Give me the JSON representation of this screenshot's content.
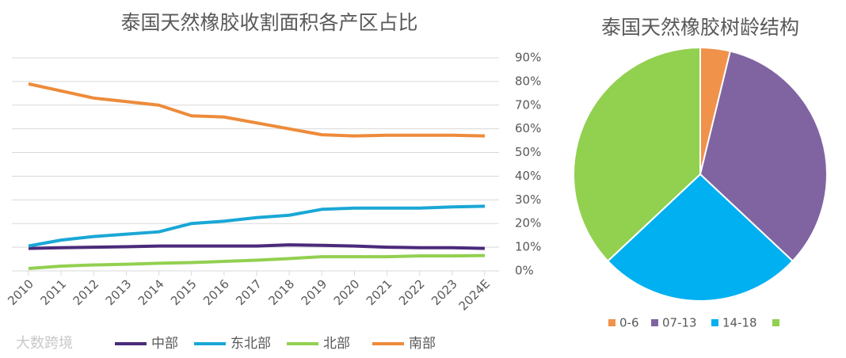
{
  "chart_data": [
    {
      "type": "line",
      "title": "泰国天然橡胶收割面积各产区占比",
      "categories": [
        "2010",
        "2011",
        "2012",
        "2013",
        "2014",
        "2015",
        "2016",
        "2017",
        "2018",
        "2019",
        "2020",
        "2021",
        "2022",
        "2023",
        "2024E"
      ],
      "series": [
        {
          "name": "中部",
          "color": "#4b2a7b",
          "values": [
            9.5,
            9.8,
            10,
            10.2,
            10.5,
            10.5,
            10.5,
            10.5,
            11,
            10.8,
            10.5,
            10,
            9.8,
            9.8,
            9.5
          ]
        },
        {
          "name": "东北部",
          "color": "#1aa7d6",
          "values": [
            10.5,
            13,
            14.5,
            15.5,
            16.5,
            20,
            21,
            22.5,
            23.5,
            26,
            26.5,
            26.5,
            26.5,
            27,
            27.3
          ]
        },
        {
          "name": "北部",
          "color": "#92d050",
          "values": [
            1,
            2,
            2.5,
            2.8,
            3.2,
            3.5,
            4,
            4.5,
            5.2,
            6,
            6,
            6,
            6.3,
            6.3,
            6.5
          ]
        },
        {
          "name": "南部",
          "color": "#ed8b3b",
          "values": [
            79,
            76,
            73,
            71.5,
            70,
            65.5,
            65,
            62.5,
            60,
            57.5,
            57,
            57.3,
            57.3,
            57.3,
            57
          ]
        }
      ],
      "ylim": [
        0,
        90
      ],
      "yticks": [
        {
          "value": 0,
          "label": "0%"
        },
        {
          "value": 10,
          "label": "10%"
        },
        {
          "value": 20,
          "label": "20%"
        },
        {
          "value": 30,
          "label": "30%"
        },
        {
          "value": 40,
          "label": "40%"
        },
        {
          "value": 50,
          "label": "50%"
        },
        {
          "value": 60,
          "label": "60%"
        },
        {
          "value": 70,
          "label": "70%"
        },
        {
          "value": 80,
          "label": "80%"
        },
        {
          "value": 90,
          "label": "90%"
        }
      ],
      "grid": true
    },
    {
      "type": "pie",
      "title": "泰国天然橡胶树龄结构",
      "categories": [
        "0-6",
        "07-13",
        "14-18",
        null
      ],
      "values": [
        3.8,
        33.2,
        26,
        37
      ],
      "colors": [
        "#f0924a",
        "#8064a2",
        "#00b0f0",
        "#92d050"
      ]
    }
  ],
  "watermark": "大数跨境"
}
